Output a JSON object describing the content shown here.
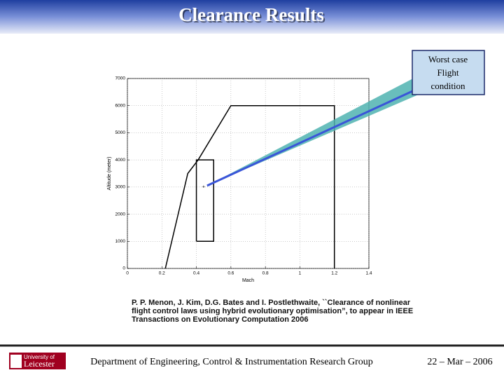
{
  "slide_title": "Clearance Results",
  "chart_data": {
    "type": "line",
    "xlabel": "Mach",
    "ylabel": "Altitude (meter)",
    "xlim": [
      0,
      1.4
    ],
    "xticks": [
      0,
      0.2,
      0.4,
      0.6,
      0.8,
      1,
      1.2,
      1.4
    ],
    "ylim": [
      0,
      7000
    ],
    "yticks": [
      0,
      1000,
      2000,
      3000,
      4000,
      5000,
      6000,
      7000
    ],
    "grid": true,
    "series": [
      {
        "color": "#000000",
        "x": [
          0.22,
          0.35,
          0.41,
          0.6,
          1.2,
          1.2
        ],
        "values": [
          0,
          3500,
          4000,
          6000,
          6000,
          0
        ]
      },
      {
        "color": "#000000",
        "x": [
          0.4,
          0.4,
          0.5,
          0.5,
          0.4
        ],
        "values": [
          1000,
          4000,
          4000,
          1000,
          1000
        ]
      }
    ],
    "point": {
      "x": 0.45,
      "value": 3000,
      "marker": "+"
    },
    "annotation": [
      "Worst case",
      "Flight",
      "condition"
    ]
  },
  "citation": [
    "P. P. Menon, J. Kim, D.G. Bates and I. Postlethwaite, ``Clearance of nonlinear",
    "flight control laws using hybrid evolutionary optimisation”, to appear in IEEE",
    "Transactions on Evolutionary Computation 2006"
  ],
  "footer": {
    "logo": [
      "University of",
      "Leicester"
    ],
    "department": "Department of Engineering, Control & Instrumentation Research Group",
    "date": "22 – Mar – 2006"
  }
}
